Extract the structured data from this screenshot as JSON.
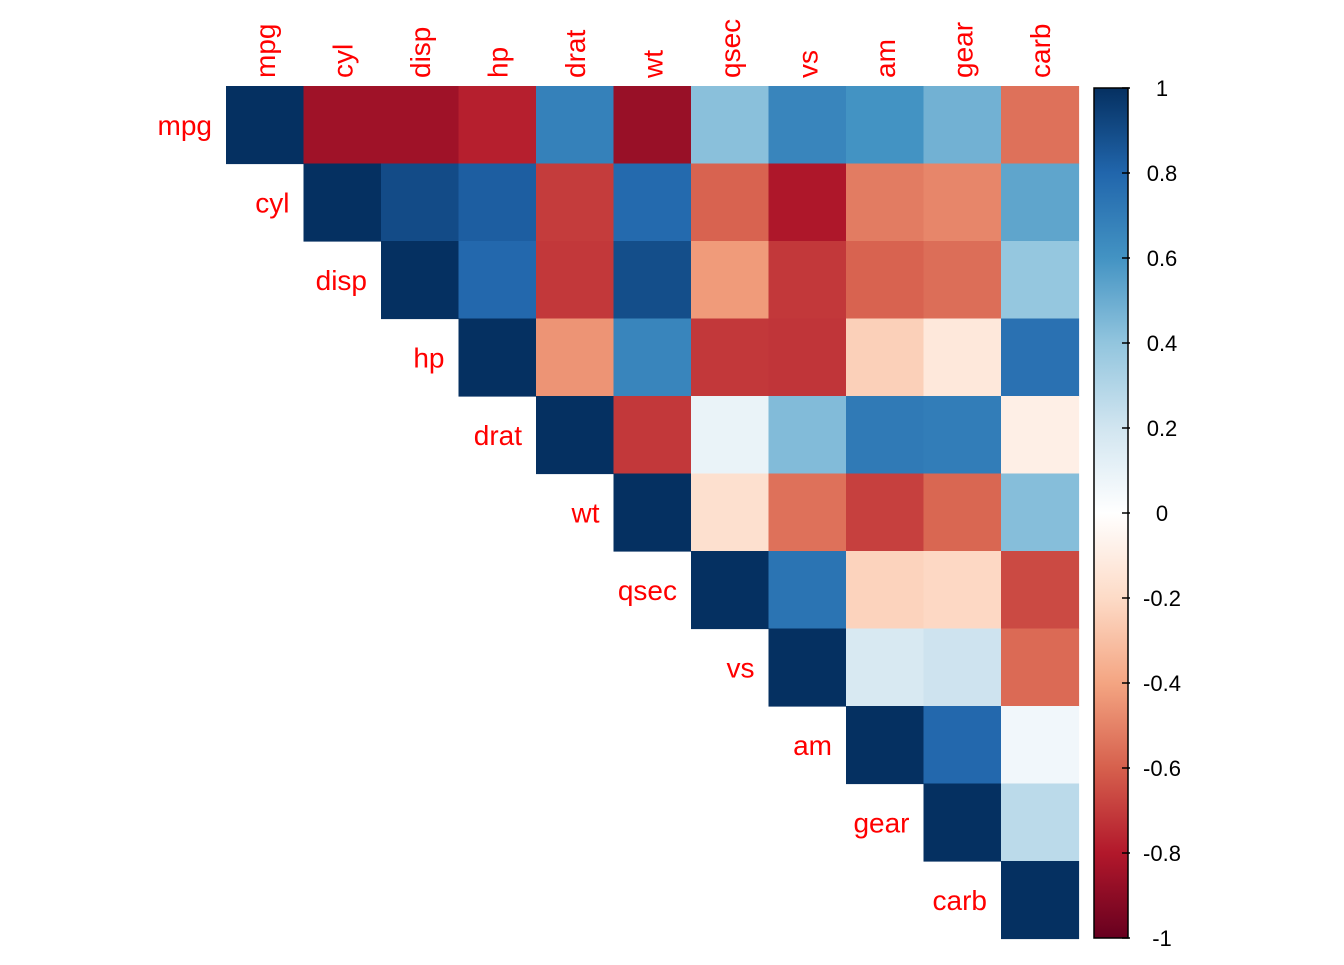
{
  "chart_data": {
    "type": "heatmap",
    "title": "",
    "layout": "upper-triangle",
    "variables": [
      "mpg",
      "cyl",
      "disp",
      "hp",
      "drat",
      "wt",
      "qsec",
      "vs",
      "am",
      "gear",
      "carb"
    ],
    "matrix": [
      [
        1.0,
        -0.85,
        -0.85,
        -0.78,
        0.68,
        -0.87,
        0.42,
        0.66,
        0.6,
        0.48,
        -0.55
      ],
      [
        -0.85,
        1.0,
        0.9,
        0.83,
        -0.7,
        0.78,
        -0.59,
        -0.81,
        -0.52,
        -0.49,
        0.53
      ],
      [
        -0.85,
        0.9,
        1.0,
        0.79,
        -0.71,
        0.89,
        -0.43,
        -0.71,
        -0.59,
        -0.56,
        0.39
      ],
      [
        -0.78,
        0.83,
        0.79,
        1.0,
        -0.45,
        0.66,
        -0.71,
        -0.72,
        -0.24,
        -0.13,
        0.75
      ],
      [
        0.68,
        -0.7,
        -0.71,
        -0.45,
        1.0,
        -0.71,
        0.09,
        0.44,
        0.71,
        0.7,
        -0.09
      ],
      [
        -0.87,
        0.78,
        0.89,
        0.66,
        -0.71,
        1.0,
        -0.17,
        -0.55,
        -0.69,
        -0.58,
        0.43
      ],
      [
        0.42,
        -0.59,
        -0.43,
        -0.71,
        0.09,
        -0.17,
        1.0,
        0.74,
        -0.23,
        -0.21,
        -0.66
      ],
      [
        0.66,
        -0.81,
        -0.71,
        -0.72,
        0.44,
        -0.55,
        0.74,
        1.0,
        0.17,
        0.21,
        -0.57
      ],
      [
        0.6,
        -0.52,
        -0.59,
        -0.24,
        0.71,
        -0.69,
        -0.23,
        0.17,
        1.0,
        0.79,
        0.06
      ],
      [
        0.48,
        -0.49,
        -0.56,
        -0.13,
        0.7,
        -0.58,
        -0.21,
        0.21,
        0.79,
        1.0,
        0.27
      ],
      [
        -0.55,
        0.53,
        0.39,
        0.75,
        -0.09,
        0.43,
        -0.66,
        -0.57,
        0.06,
        0.27,
        1.0
      ]
    ],
    "colorbar": {
      "range": [
        -1,
        1
      ],
      "ticks": [
        "1",
        "0.8",
        "0.6",
        "0.4",
        "0.2",
        "0",
        "-0.2",
        "-0.4",
        "-0.6",
        "-0.8",
        "-1"
      ],
      "tick_values": [
        1,
        0.8,
        0.6,
        0.4,
        0.2,
        0,
        -0.2,
        -0.4,
        -0.6,
        -0.8,
        -1
      ],
      "colors_low_to_high": [
        "#67001F",
        "#B2182B",
        "#D6604D",
        "#F4A582",
        "#FDDBC7",
        "#FFFFFF",
        "#D1E5F0",
        "#92C5DE",
        "#4393C3",
        "#2166AC",
        "#053061"
      ]
    },
    "label_color": "#FF0000",
    "grid": false,
    "legend": "right"
  }
}
